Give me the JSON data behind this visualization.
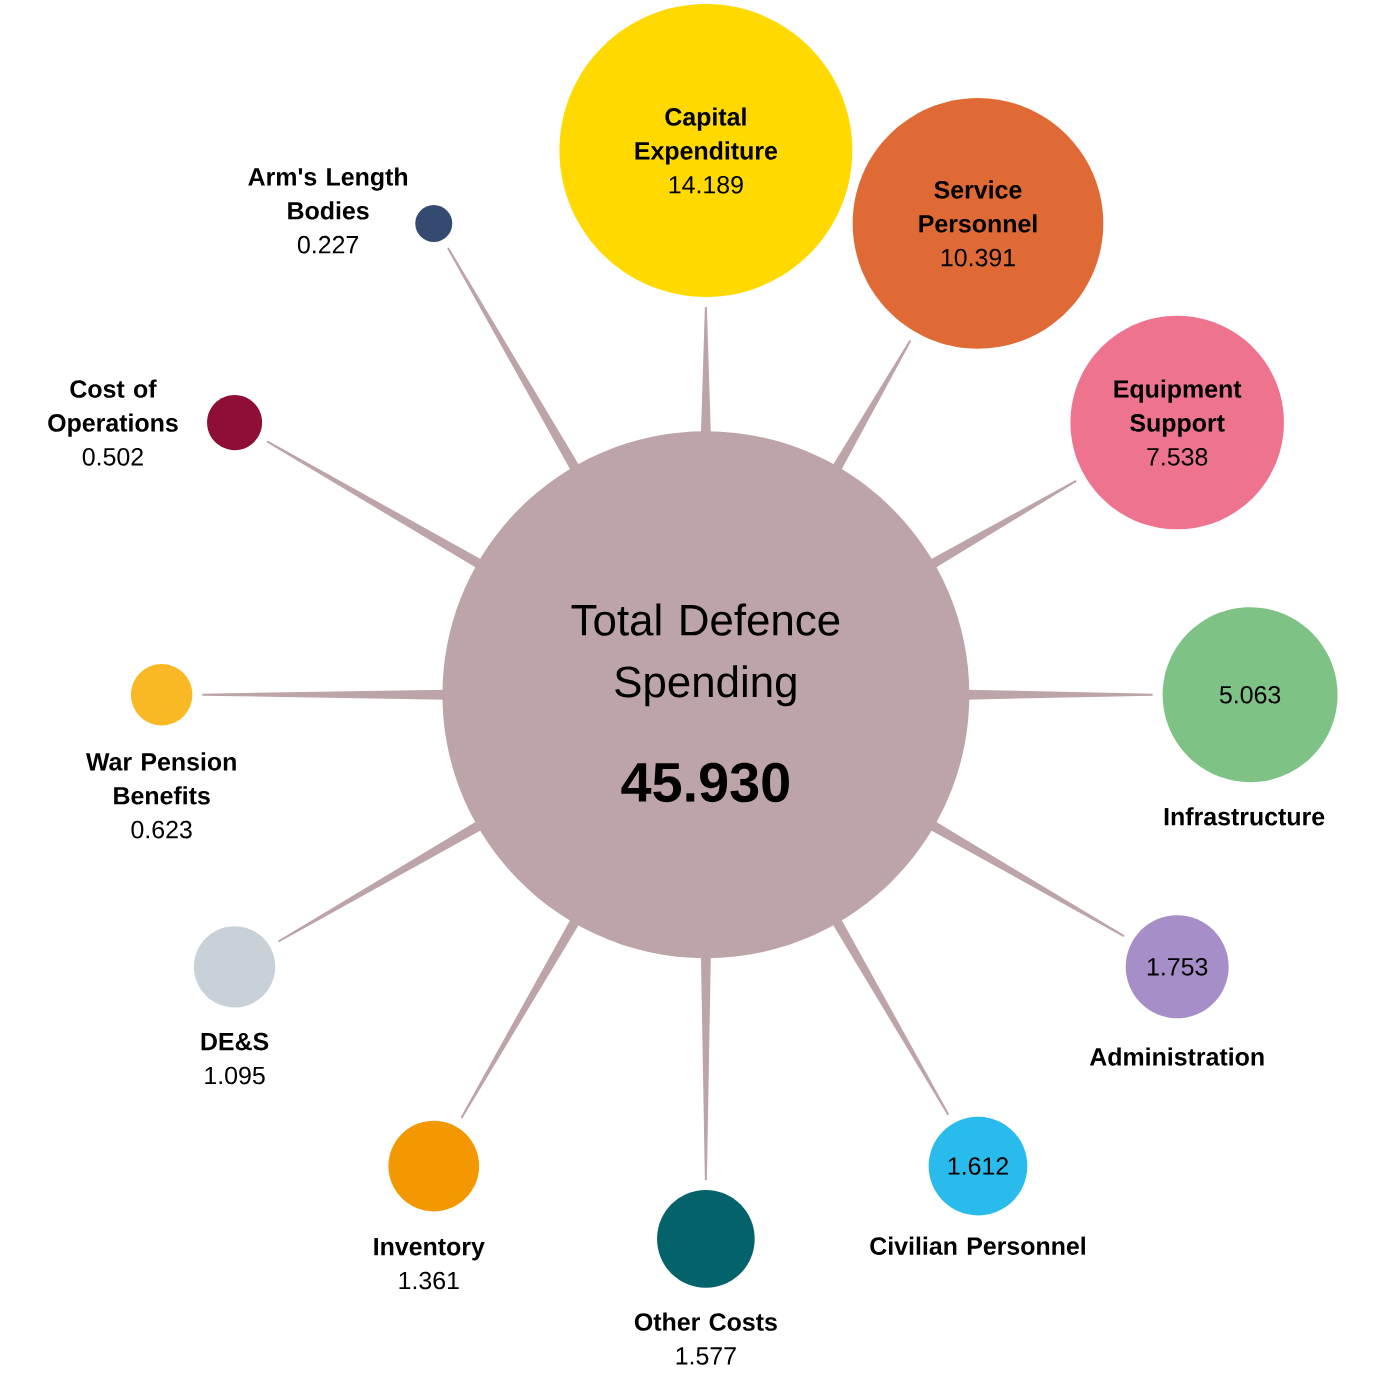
{
  "chart_data": {
    "type": "other",
    "title": "Total Defence Spending",
    "totals": [
      "45.930"
    ],
    "color": "#bda4a8",
    "categories": [
      "Capital Expenditure",
      "Service Personnel",
      "Equipment Support",
      "Infrastructure",
      "Administration",
      "Civilian Personnel",
      "Other Costs",
      "Inventory",
      "DE&S",
      "War Pension Benefits",
      "Cost of Operations",
      "Arm's Length Bodies"
    ],
    "values": [
      14.189,
      10.391,
      7.538,
      5.063,
      1.753,
      1.612,
      1.577,
      1.361,
      1.095,
      0.623,
      0.502,
      0.227
    ],
    "colors": [
      "#ffd900",
      "#e06a35",
      "#ee738f",
      "#7fc286",
      "#a68fc8",
      "#28bbec",
      "#04636a",
      "#f39800",
      "#c7d1d7",
      "#f9b924",
      "#8e0e35",
      "#354a70"
    ],
    "data_labels": true
  }
}
